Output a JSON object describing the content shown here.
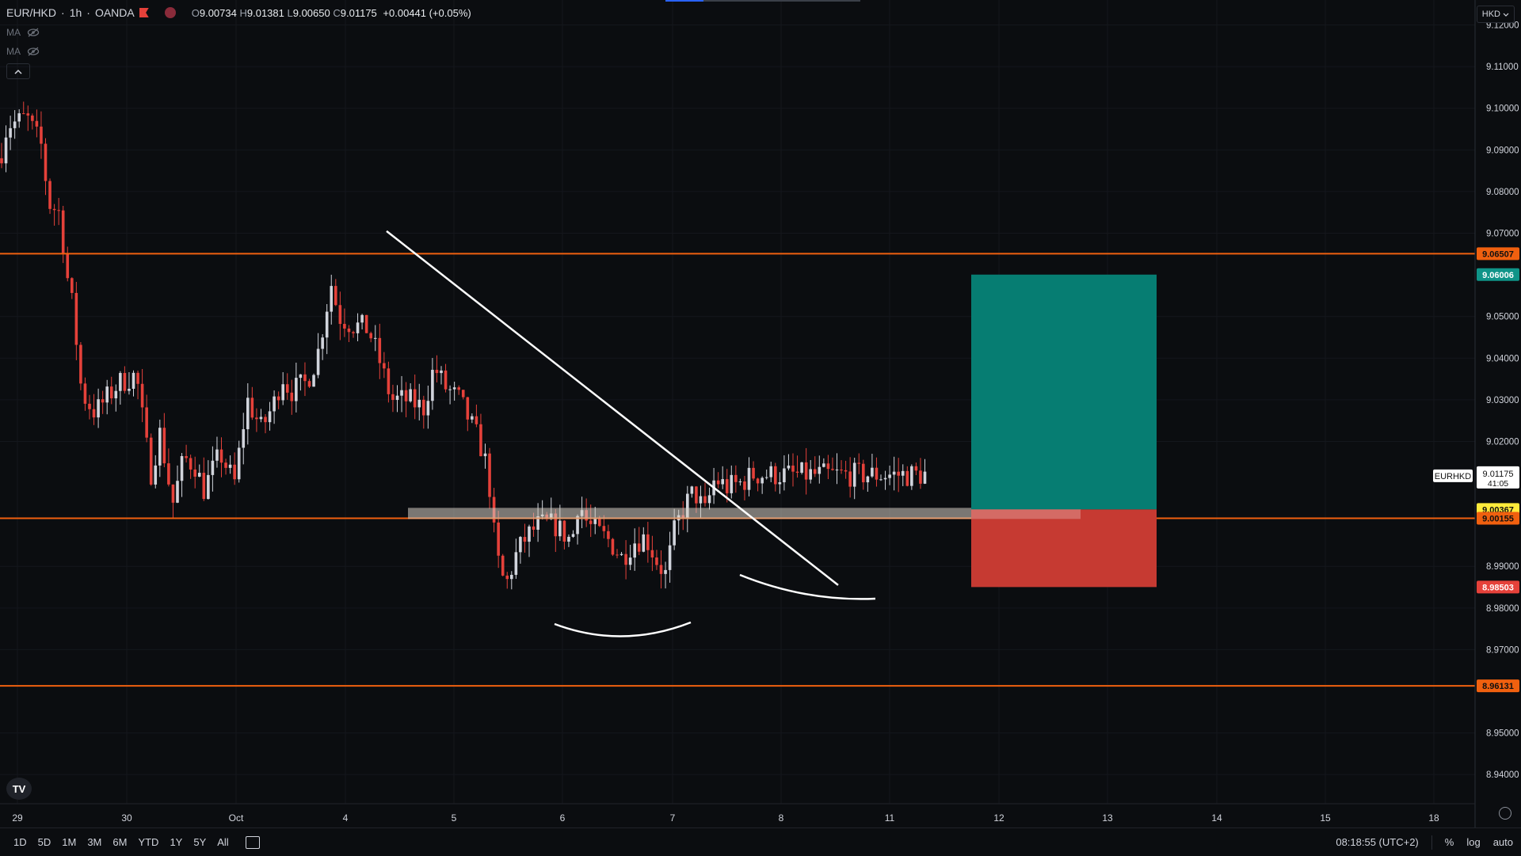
{
  "symbol_bar": {
    "symbol": "EUR/HKD",
    "interval": "1h",
    "exchange": "OANDA",
    "ohlc": {
      "o_label": "O",
      "o": "9.00734",
      "h_label": "H",
      "h": "9.01381",
      "l_label": "L",
      "l": "9.00650",
      "c_label": "C",
      "c": "9.01175",
      "change": "+0.00441 (+0.05%)"
    }
  },
  "indicators": [
    {
      "label": "MA",
      "icon": "eye-off-icon"
    },
    {
      "label": "MA",
      "icon": "eye-off-icon"
    }
  ],
  "collapse_icon": "chevron-up-icon",
  "currency_button": {
    "label": "HKD"
  },
  "price_scale": {
    "ticks": [
      "9.12000",
      "9.11000",
      "9.10000",
      "9.09000",
      "9.08000",
      "9.07000",
      "9.05000",
      "9.04000",
      "9.03000",
      "9.02000",
      "8.99000",
      "8.98000",
      "8.97000",
      "8.95000",
      "8.94000"
    ],
    "labels": [
      {
        "value": "9.06507",
        "color": "#f0600f",
        "text_color": "#101010"
      },
      {
        "value": "9.06006",
        "color": "#0f9488",
        "text_color": "#ffffff"
      },
      {
        "value": "9.00367",
        "color": "#ffeb3b",
        "text_color": "#101010"
      },
      {
        "value": "9.00155",
        "color": "#f0600f",
        "text_color": "#101010"
      },
      {
        "value": "8.98503",
        "color": "#e5413a",
        "text_color": "#ffffff"
      },
      {
        "value": "8.96131",
        "color": "#f0600f",
        "text_color": "#101010"
      }
    ],
    "last_price": {
      "symbol": "EURHKD",
      "price": "9.01175",
      "countdown": "41:05"
    }
  },
  "time_axis": [
    "29",
    "30",
    "Oct",
    "4",
    "5",
    "6",
    "7",
    "8",
    "11",
    "12",
    "13",
    "14",
    "15",
    "18"
  ],
  "bottom_bar": {
    "ranges": [
      "1D",
      "5D",
      "1M",
      "3M",
      "6M",
      "YTD",
      "1Y",
      "5Y",
      "All"
    ],
    "clock": "08:18:55 (UTC+2)",
    "percent": "%",
    "log": "log",
    "auto": "auto"
  },
  "colors": {
    "background": "#0b0d10",
    "up": "#d1d4dc",
    "down": "#e5413a",
    "level_line": "#f0600f",
    "profit": "#067d72",
    "loss": "#c63a32"
  },
  "chart_data": {
    "type": "candlestick",
    "symbol": "EUR/HKD",
    "interval": "1h",
    "y_range": [
      8.933,
      9.126
    ],
    "x_range": [
      "Sep 29",
      "Oct 18"
    ],
    "horizontal_levels": [
      9.06507,
      9.00155,
      8.96131
    ],
    "position": {
      "entry": 9.00367,
      "target": 9.06006,
      "stop": 8.98503,
      "type": "long"
    },
    "trendline": {
      "start": 9.0705,
      "end": 8.9855
    },
    "last_price": 9.01175,
    "waypoints": [
      [
        0,
        9.088
      ],
      [
        9,
        9.096
      ],
      [
        26,
        9.097
      ],
      [
        33,
        9.098
      ],
      [
        52,
        9.091
      ],
      [
        62,
        9.077
      ],
      [
        75,
        9.075
      ],
      [
        86,
        9.058
      ],
      [
        94,
        9.05
      ],
      [
        100,
        9.035
      ],
      [
        108,
        9.03
      ],
      [
        120,
        9.027
      ],
      [
        150,
        9.034
      ],
      [
        172,
        9.036
      ],
      [
        190,
        9.012
      ],
      [
        202,
        9.022
      ],
      [
        218,
        9.005
      ],
      [
        232,
        9.016
      ],
      [
        248,
        9.014
      ],
      [
        256,
        9.008
      ],
      [
        278,
        9.017
      ],
      [
        296,
        9.01
      ],
      [
        312,
        9.03
      ],
      [
        330,
        9.023
      ],
      [
        348,
        9.03
      ],
      [
        356,
        9.036
      ],
      [
        366,
        9.032
      ],
      [
        386,
        9.034
      ],
      [
        400,
        9.04
      ],
      [
        418,
        9.058
      ],
      [
        428,
        9.05
      ],
      [
        445,
        9.048
      ],
      [
        465,
        9.047
      ],
      [
        478,
        9.04
      ],
      [
        494,
        9.03
      ],
      [
        515,
        9.03
      ],
      [
        535,
        9.028
      ],
      [
        548,
        9.038
      ],
      [
        562,
        9.033
      ],
      [
        580,
        9.03
      ],
      [
        605,
        9.02
      ],
      [
        616,
        9.013
      ],
      [
        626,
        8.993
      ],
      [
        638,
        8.985
      ],
      [
        652,
        8.993
      ],
      [
        664,
        8.997
      ],
      [
        680,
        9.0
      ],
      [
        700,
        9.0
      ],
      [
        722,
        8.996
      ],
      [
        730,
        9.006
      ],
      [
        742,
        9.0
      ],
      [
        756,
        8.998
      ],
      [
        770,
        8.996
      ],
      [
        785,
        8.992
      ],
      [
        800,
        8.996
      ],
      [
        815,
        8.997
      ],
      [
        830,
        8.991
      ],
      [
        840,
        8.988
      ],
      [
        852,
        8.999
      ],
      [
        866,
        9.005
      ],
      [
        876,
        9.008
      ],
      [
        890,
        9.003
      ],
      [
        902,
        9.011
      ],
      [
        918,
        9.009
      ],
      [
        935,
        9.01
      ],
      [
        950,
        9.012
      ]
    ]
  }
}
